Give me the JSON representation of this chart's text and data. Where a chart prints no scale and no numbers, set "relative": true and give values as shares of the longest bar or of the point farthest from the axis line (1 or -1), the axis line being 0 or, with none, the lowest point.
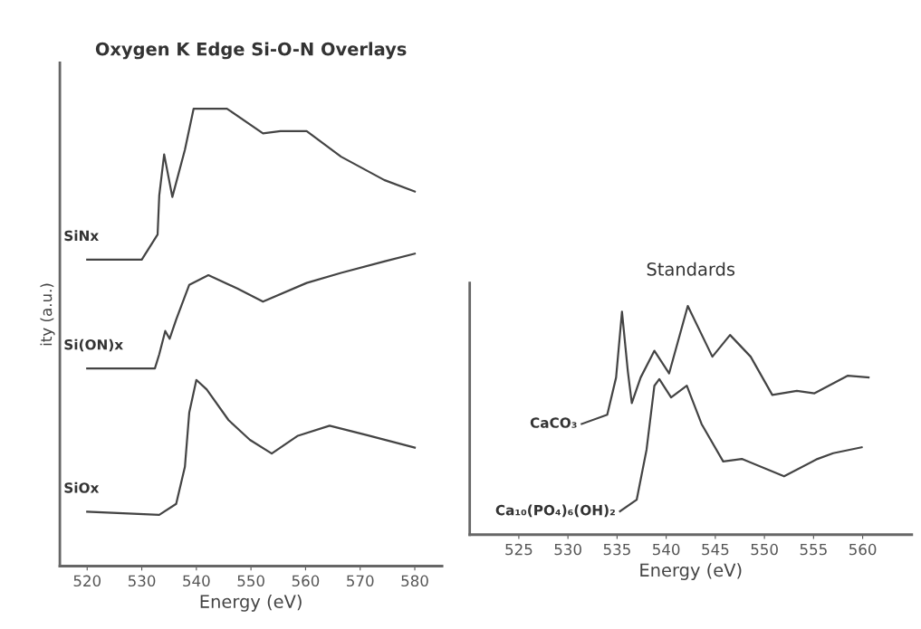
{
  "chart_data": [
    {
      "type": "line",
      "title": "Oxygen K Edge Si-O-N Overlays",
      "xlabel": "Energy (eV)",
      "ylabel": "ity (a.u.)",
      "relative": true,
      "tick_labels": "x",
      "grid": false,
      "legend": false,
      "xlim": [
        515,
        585
      ],
      "xticks": [
        520,
        530,
        540,
        550,
        560,
        570,
        580
      ],
      "series": [
        {
          "name": "SiNx",
          "color": "#444444",
          "x": [
            520,
            530,
            532.9,
            533.2,
            534.1,
            535.6,
            537.9,
            539.5,
            545.6,
            552.2,
            555.4,
            560.2,
            566.5,
            574.4,
            580
          ],
          "values": [
            0.67,
            0.67,
            0.725,
            0.81,
            0.9,
            0.807,
            0.91,
            1.0,
            1.0,
            0.946,
            0.951,
            0.951,
            0.895,
            0.844,
            0.819
          ]
        },
        {
          "name": "Si(ON)x",
          "color": "#444444",
          "x": [
            520,
            532.4,
            533.2,
            534.3,
            535.1,
            536.3,
            538.7,
            542.2,
            547.5,
            552.2,
            560.2,
            566.5,
            574.4,
            580
          ],
          "values": [
            0.432,
            0.432,
            0.463,
            0.514,
            0.497,
            0.539,
            0.615,
            0.636,
            0.607,
            0.578,
            0.619,
            0.641,
            0.666,
            0.683
          ]
        },
        {
          "name": "SiOx",
          "color": "#444444",
          "x": [
            520,
            533.2,
            536.3,
            537.9,
            538.7,
            540,
            541.9,
            545.9,
            549.8,
            553.8,
            558.6,
            564.4,
            571.3,
            580
          ],
          "values": [
            0.119,
            0.112,
            0.136,
            0.217,
            0.336,
            0.407,
            0.386,
            0.319,
            0.276,
            0.246,
            0.285,
            0.307,
            0.286,
            0.259
          ]
        }
      ]
    },
    {
      "type": "line",
      "title": "Standards",
      "xlabel": "Energy (eV)",
      "relative": true,
      "tick_labels": "x",
      "grid": false,
      "legend": false,
      "xlim": [
        520,
        565
      ],
      "xticks": [
        525,
        530,
        535,
        540,
        545,
        550,
        555,
        560
      ],
      "series": [
        {
          "name": "CaCO₃",
          "color": "#444444",
          "x": [
            531.4,
            534.0,
            534.9,
            535.5,
            536.1,
            536.5,
            537.4,
            538.8,
            540.3,
            542.2,
            544.7,
            546.5,
            548.6,
            550.8,
            553.3,
            555.1,
            558.5,
            560.6
          ],
          "values": [
            0.484,
            0.524,
            0.687,
            0.975,
            0.713,
            0.575,
            0.687,
            0.804,
            0.705,
            1.0,
            0.778,
            0.873,
            0.778,
            0.611,
            0.629,
            0.618,
            0.695,
            0.687
          ]
        },
        {
          "name": "Ca₁₀(PO₄)₆(OH)₂",
          "color": "#444444",
          "x": [
            535.3,
            537.0,
            538.0,
            538.8,
            539.3,
            540.5,
            542.1,
            543.6,
            545.8,
            547.7,
            552.0,
            555.4,
            557.0,
            559.9
          ],
          "values": [
            0.102,
            0.153,
            0.371,
            0.651,
            0.68,
            0.6,
            0.651,
            0.484,
            0.32,
            0.331,
            0.255,
            0.331,
            0.356,
            0.382
          ]
        }
      ]
    }
  ]
}
